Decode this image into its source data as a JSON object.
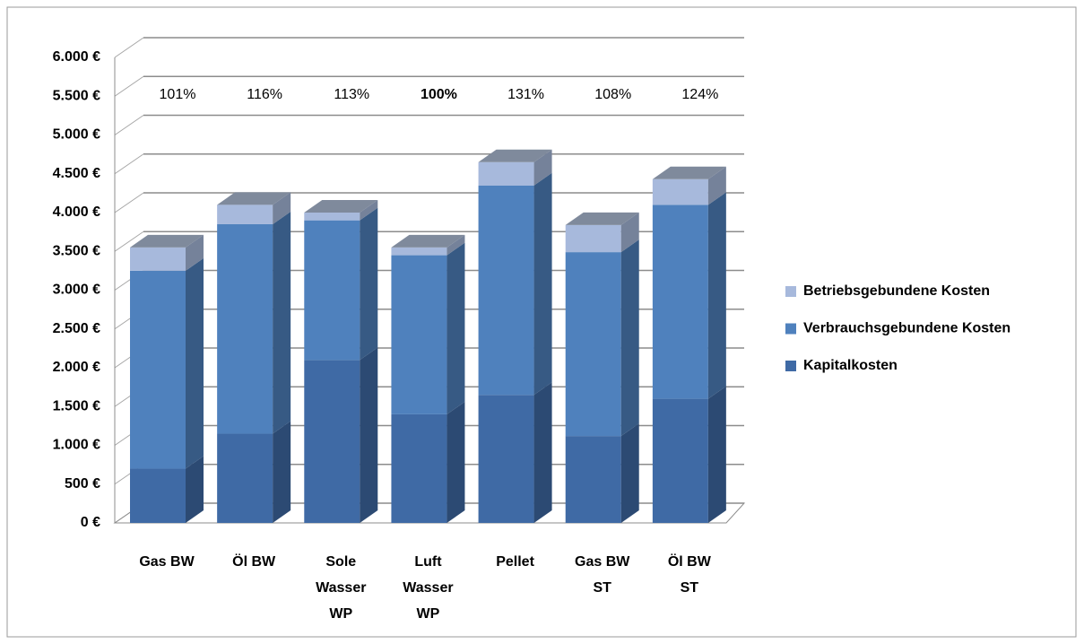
{
  "chart_data": {
    "type": "bar3d_stacked",
    "categories": [
      [
        "Gas BW"
      ],
      [
        "Öl BW"
      ],
      [
        "Sole",
        "Wasser",
        "WP"
      ],
      [
        "Luft",
        "Wasser",
        "WP"
      ],
      [
        "Pellet"
      ],
      [
        "Gas BW",
        "ST"
      ],
      [
        "Öl BW",
        "ST"
      ]
    ],
    "series": [
      {
        "name": "Kapitalkosten",
        "color": "#3f6aa5",
        "values": [
          700,
          1150,
          2100,
          1400,
          1650,
          1120,
          1600
        ]
      },
      {
        "name": "Verbrauchsgebundene Kosten",
        "color": "#4f81bd",
        "values": [
          2550,
          2700,
          1800,
          2050,
          2700,
          2370,
          2500
        ]
      },
      {
        "name": "Betriebsgebundene Kosten",
        "color": "#a7b9dc",
        "values": [
          300,
          250,
          100,
          100,
          300,
          350,
          330
        ]
      }
    ],
    "annotations": [
      "101%",
      "116%",
      "113%",
      "100%",
      "131%",
      "108%",
      "124%"
    ],
    "annotation_bold": [
      false,
      false,
      false,
      true,
      false,
      false,
      false
    ],
    "ylim": [
      0,
      6000
    ],
    "yticks": [
      {
        "value": 0,
        "label": "0 €"
      },
      {
        "value": 500,
        "label": "500 €"
      },
      {
        "value": 1000,
        "label": "1.000 €"
      },
      {
        "value": 1500,
        "label": "1.500 €"
      },
      {
        "value": 2000,
        "label": "2.000 €"
      },
      {
        "value": 2500,
        "label": "2.500 €"
      },
      {
        "value": 3000,
        "label": "3.000 €"
      },
      {
        "value": 3500,
        "label": "3.500 €"
      },
      {
        "value": 4000,
        "label": "4.000 €"
      },
      {
        "value": 4500,
        "label": "4.500 €"
      },
      {
        "value": 5000,
        "label": "5.000 €"
      },
      {
        "value": 5500,
        "label": "5.500 €"
      },
      {
        "value": 6000,
        "label": "6.000 €"
      }
    ],
    "grid": true,
    "legend": "right"
  }
}
